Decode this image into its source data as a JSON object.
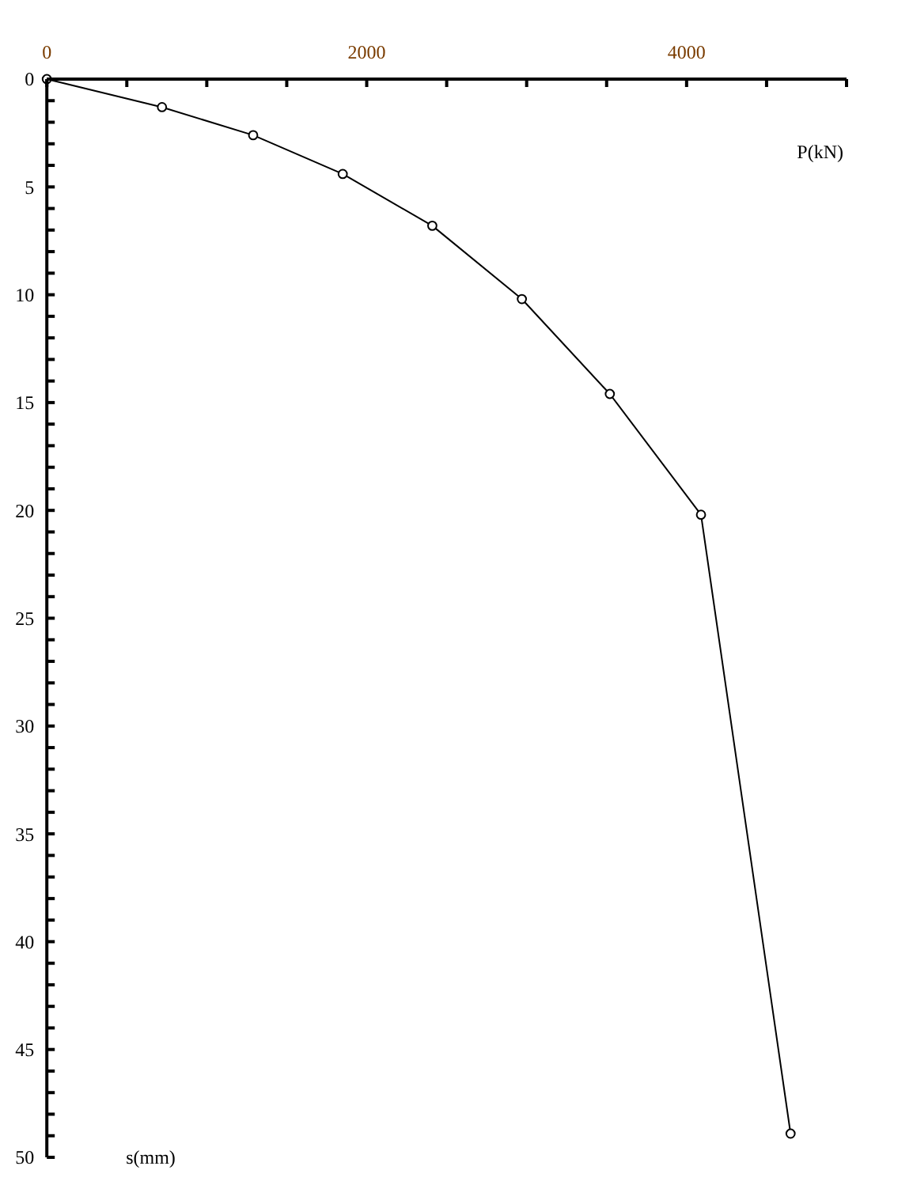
{
  "chart_data": {
    "type": "line",
    "xlabel": "P(kN)",
    "ylabel": "s(mm)",
    "marker": "circle",
    "line_style": "solid",
    "x": [
      0,
      720,
      1290,
      1850,
      2410,
      2970,
      3520,
      4090,
      4650
    ],
    "series": [
      {
        "color": "#000000",
        "values": [
          0,
          1.3,
          2.6,
          4.4,
          6.8,
          10.2,
          14.6,
          20.2,
          48.9
        ]
      }
    ],
    "xlim": [
      0,
      5000
    ],
    "xticks": [
      0,
      {
        "value": 500,
        "label": null
      },
      {
        "value": 1000,
        "label": null
      },
      {
        "value": 1500,
        "label": null
      },
      2000,
      {
        "value": 2500,
        "label": null
      },
      {
        "value": 3000,
        "label": null
      },
      {
        "value": 3500,
        "label": null
      },
      4000,
      {
        "value": 4500,
        "label": null
      },
      {
        "value": 5000,
        "label": null
      }
    ],
    "ylim": [
      50,
      0
    ],
    "yticks": [
      0,
      {
        "value": 1,
        "label": null
      },
      {
        "value": 2,
        "label": null
      },
      {
        "value": 3,
        "label": null
      },
      {
        "value": 4,
        "label": null
      },
      5,
      {
        "value": 6,
        "label": null
      },
      {
        "value": 7,
        "label": null
      },
      {
        "value": 8,
        "label": null
      },
      {
        "value": 9,
        "label": null
      },
      10,
      {
        "value": 11,
        "label": null
      },
      {
        "value": 12,
        "label": null
      },
      {
        "value": 13,
        "label": null
      },
      {
        "value": 14,
        "label": null
      },
      15,
      {
        "value": 16,
        "label": null
      },
      {
        "value": 17,
        "label": null
      },
      {
        "value": 18,
        "label": null
      },
      {
        "value": 19,
        "label": null
      },
      20,
      {
        "value": 21,
        "label": null
      },
      {
        "value": 22,
        "label": null
      },
      {
        "value": 23,
        "label": null
      },
      {
        "value": 24,
        "label": null
      },
      25,
      {
        "value": 26,
        "label": null
      },
      {
        "value": 27,
        "label": null
      },
      {
        "value": 28,
        "label": null
      },
      {
        "value": 29,
        "label": null
      },
      30,
      {
        "value": 31,
        "label": null
      },
      {
        "value": 32,
        "label": null
      },
      {
        "value": 33,
        "label": null
      },
      {
        "value": 34,
        "label": null
      },
      35,
      {
        "value": 36,
        "label": null
      },
      {
        "value": 37,
        "label": null
      },
      {
        "value": 38,
        "label": null
      },
      {
        "value": 39,
        "label": null
      },
      40,
      {
        "value": 41,
        "label": null
      },
      {
        "value": 42,
        "label": null
      },
      {
        "value": 43,
        "label": null
      },
      {
        "value": 44,
        "label": null
      },
      45,
      {
        "value": 46,
        "label": null
      },
      {
        "value": 47,
        "label": null
      },
      {
        "value": 48,
        "label": null
      },
      {
        "value": 49,
        "label": null
      },
      50
    ]
  }
}
